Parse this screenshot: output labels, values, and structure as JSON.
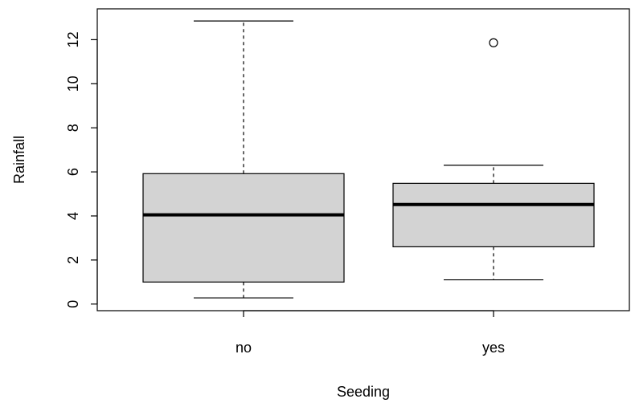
{
  "chart_data": {
    "type": "boxplot",
    "title": "",
    "xlabel": "Seeding",
    "ylabel": "Rainfall",
    "ylim": [
      -0.3,
      13.4
    ],
    "yticks": [
      0,
      2,
      4,
      6,
      8,
      10,
      12
    ],
    "ytick_labels": [
      "0",
      "2",
      "4",
      "6",
      "8",
      "10",
      "12"
    ],
    "categories": [
      "no",
      "yes"
    ],
    "boxes": [
      {
        "category": "no",
        "whisker_low": 0.28,
        "q1": 1.0,
        "median": 4.05,
        "q3": 5.92,
        "whisker_high": 12.85,
        "outliers": []
      },
      {
        "category": "yes",
        "whisker_low": 1.1,
        "q1": 2.6,
        "median": 4.52,
        "q3": 5.48,
        "whisker_high": 6.3,
        "outliers": [
          11.86
        ]
      }
    ],
    "box_fill": "#d3d3d3",
    "stroke_color": "#000000"
  }
}
